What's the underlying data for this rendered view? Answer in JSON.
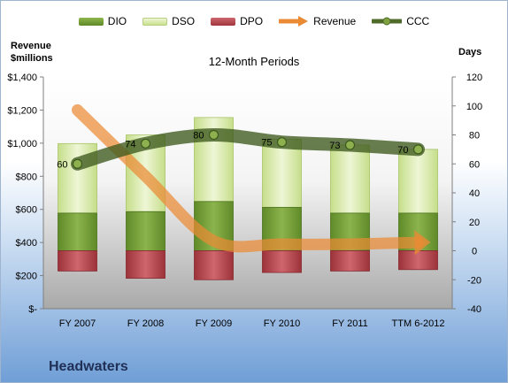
{
  "chart_data": {
    "type": "bar",
    "title": "12-Month Periods",
    "categories": [
      "FY 2007",
      "FY 2008",
      "FY 2009",
      "FY 2010",
      "FY 2011",
      "TTM 6-2012"
    ],
    "y_left": {
      "label_line1": "Revenue",
      "label_line2": "$millions",
      "range": [
        0,
        1400
      ],
      "ticks": [
        0,
        200,
        400,
        600,
        800,
        1000,
        1200,
        1400
      ],
      "tick_labels": [
        "$-",
        "$200",
        "$400",
        "$600",
        "$800",
        "$1,000",
        "$1,200",
        "$1,400"
      ]
    },
    "y_right": {
      "label": "Days",
      "range": [
        -40,
        120
      ],
      "ticks": [
        -40,
        -20,
        0,
        20,
        40,
        60,
        80,
        100,
        120
      ],
      "tick_labels": [
        "-40",
        "-20",
        "0",
        "20",
        "40",
        "60",
        "80",
        "100",
        "120"
      ]
    },
    "series": [
      {
        "name": "DIO",
        "axis": "right",
        "type": "stacked-bar",
        "color": "#6f9a34",
        "values": [
          26,
          27,
          34,
          30,
          26,
          26
        ]
      },
      {
        "name": "DSO",
        "axis": "right",
        "type": "stacked-bar",
        "color": "#d7e9a9",
        "values": [
          48,
          53,
          58,
          47,
          47,
          44
        ]
      },
      {
        "name": "DPO",
        "axis": "right",
        "type": "stacked-bar-negative",
        "color": "#b2434a",
        "values": [
          -14,
          -19,
          -20,
          -15,
          -14,
          -13
        ]
      },
      {
        "name": "Revenue",
        "axis": "left",
        "type": "arrow-line",
        "color": "#ea8a35",
        "values": [
          1200,
          800,
          410,
          390,
          390,
          400
        ]
      },
      {
        "name": "CCC",
        "axis": "right",
        "type": "line",
        "color": "#4f6b2a",
        "values": [
          60,
          74,
          80,
          75,
          73,
          70
        ]
      }
    ],
    "ccc_labels": [
      "60",
      "74",
      "80",
      "75",
      "73",
      "70"
    ],
    "legend_position": "top",
    "grid": false
  },
  "footer": {
    "company": "Headwaters"
  }
}
